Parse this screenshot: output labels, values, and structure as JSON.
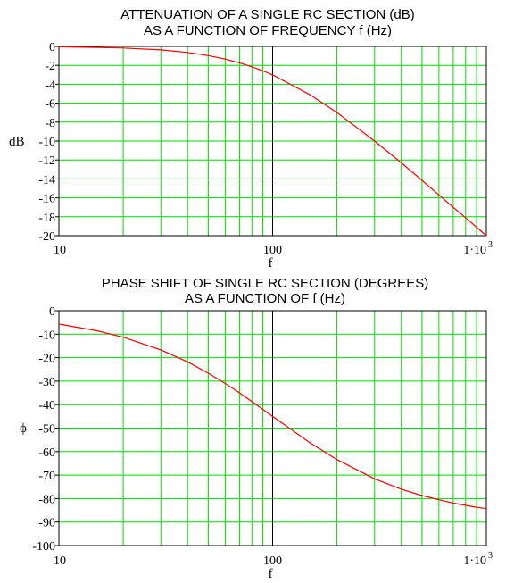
{
  "chart_data": [
    {
      "type": "line",
      "title": "ATTENUATION OF A SINGLE RC SECTION (dB)",
      "subtitle": "AS A FUNCTION OF FREQUENCY f (Hz)",
      "xlabel": "f",
      "ylabel": "dB",
      "x_scale": "log",
      "xlim": [
        10,
        1000
      ],
      "ylim": [
        -20,
        0
      ],
      "x_ticks": [
        {
          "value": 10,
          "label": "10"
        },
        {
          "value": 100,
          "label": "100"
        },
        {
          "value": 1000,
          "label": "1·10",
          "superscript": "3"
        }
      ],
      "y_ticks": [
        0,
        -2,
        -4,
        -6,
        -8,
        -10,
        -12,
        -14,
        -16,
        -18,
        -20
      ],
      "grid": true,
      "line_color": "#ff0000",
      "grid_color": "#00dd00",
      "series": [
        {
          "x": [
            10,
            15,
            20,
            30,
            40,
            50,
            60,
            70,
            80,
            90,
            100,
            150,
            200,
            300,
            400,
            500,
            600,
            700,
            800,
            900,
            1000
          ],
          "y": [
            -0.04,
            -0.1,
            -0.17,
            -0.37,
            -0.64,
            -0.97,
            -1.34,
            -1.74,
            -2.15,
            -2.58,
            -3.01,
            -5.12,
            -6.99,
            -10.0,
            -12.3,
            -14.15,
            -15.7,
            -17.0,
            -18.1,
            -19.1,
            -20.0
          ]
        }
      ]
    },
    {
      "type": "line",
      "title": "PHASE SHIFT OF SINGLE RC SECTION (DEGREES)",
      "subtitle": "AS A FUNCTION OF f (Hz)",
      "xlabel": "f",
      "ylabel": "ϕ",
      "x_scale": "log",
      "xlim": [
        10,
        1000
      ],
      "ylim": [
        -100,
        0
      ],
      "x_ticks": [
        {
          "value": 10,
          "label": "10"
        },
        {
          "value": 100,
          "label": "100"
        },
        {
          "value": 1000,
          "label": "1·10",
          "superscript": "3"
        }
      ],
      "y_ticks": [
        0,
        -10,
        -20,
        -30,
        -40,
        -50,
        -60,
        -70,
        -80,
        -90,
        -100
      ],
      "grid": true,
      "line_color": "#ff0000",
      "grid_color": "#00dd00",
      "series": [
        {
          "x": [
            10,
            15,
            20,
            30,
            40,
            50,
            60,
            70,
            80,
            90,
            100,
            150,
            200,
            300,
            400,
            500,
            600,
            700,
            800,
            900,
            1000
          ],
          "y": [
            -5.7,
            -8.5,
            -11.3,
            -16.7,
            -21.8,
            -26.6,
            -31.0,
            -35.0,
            -38.7,
            -42.0,
            -45.0,
            -56.3,
            -63.4,
            -71.6,
            -76.0,
            -78.7,
            -80.5,
            -81.9,
            -82.9,
            -83.7,
            -84.3
          ]
        }
      ]
    }
  ]
}
